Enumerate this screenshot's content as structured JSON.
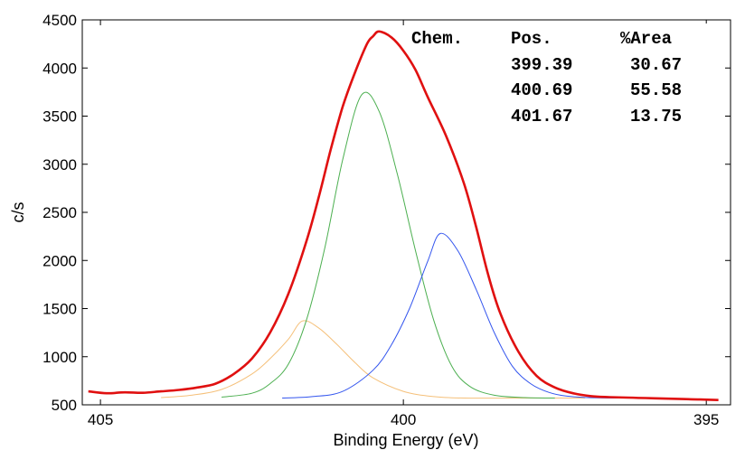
{
  "chart_data": {
    "type": "line",
    "xlabel": "Binding Energy (eV)",
    "ylabel": "c/s",
    "xlim": [
      405.3,
      394.6
    ],
    "x_reversed": true,
    "ylim": [
      500,
      4500
    ],
    "xticks": [
      405,
      400,
      395
    ],
    "yticks": [
      500,
      1000,
      1500,
      2000,
      2500,
      3000,
      3500,
      4000,
      4500
    ],
    "grid": false,
    "background_level": 570,
    "series": [
      {
        "color": "#e01010",
        "style": "envelope",
        "x": [
          405.2,
          404.9,
          404.6,
          404.3,
          404.0,
          403.7,
          403.4,
          403.1,
          402.8,
          402.5,
          402.2,
          401.9,
          401.6,
          401.4,
          401.2,
          401.0,
          400.8,
          400.6,
          400.5,
          400.4,
          400.2,
          400.0,
          399.8,
          399.6,
          399.3,
          399.0,
          398.8,
          398.6,
          398.4,
          398.1,
          397.8,
          397.5,
          397.2,
          396.9,
          396.6,
          396.3,
          396.0,
          395.7,
          395.4,
          395.1,
          394.8
        ],
        "y": [
          640,
          620,
          630,
          625,
          640,
          655,
          680,
          720,
          820,
          980,
          1250,
          1650,
          2200,
          2650,
          3150,
          3600,
          3950,
          4250,
          4330,
          4380,
          4320,
          4180,
          3980,
          3700,
          3300,
          2800,
          2350,
          1850,
          1450,
          1050,
          800,
          680,
          620,
          590,
          580,
          575,
          570,
          565,
          560,
          555,
          550
        ]
      },
      {
        "color": "#f5c07a",
        "style": "component",
        "peak_x": 401.67,
        "peak_y": 1370,
        "x": [
          404.0,
          403.5,
          403.0,
          402.5,
          402.2,
          401.9,
          401.67,
          401.4,
          401.1,
          400.8,
          400.5,
          400.0,
          399.5,
          399.0,
          398.0,
          397.0
        ],
        "y": [
          575,
          600,
          660,
          820,
          980,
          1180,
          1370,
          1300,
          1130,
          940,
          780,
          640,
          585,
          570,
          570,
          570
        ]
      },
      {
        "color": "#4caf50",
        "style": "component",
        "peak_x": 400.69,
        "peak_y": 3720,
        "x": [
          403.0,
          402.5,
          402.2,
          401.9,
          401.6,
          401.3,
          401.0,
          400.69,
          400.4,
          400.1,
          399.8,
          399.5,
          399.2,
          398.9,
          398.5,
          398.0,
          397.5
        ],
        "y": [
          580,
          620,
          720,
          920,
          1380,
          2120,
          3050,
          3720,
          3550,
          2900,
          2100,
          1380,
          900,
          690,
          600,
          575,
          570
        ]
      },
      {
        "color": "#3355ee",
        "style": "component",
        "peak_x": 399.39,
        "peak_y": 2280,
        "x": [
          402.0,
          401.5,
          401.0,
          400.5,
          400.2,
          399.9,
          399.6,
          399.39,
          399.1,
          398.8,
          398.5,
          398.2,
          397.9,
          397.6,
          397.3,
          396.8,
          396.0
        ],
        "y": [
          570,
          585,
          640,
          860,
          1120,
          1500,
          1990,
          2280,
          2100,
          1700,
          1250,
          900,
          720,
          630,
          590,
          572,
          570
        ]
      }
    ],
    "table": {
      "headers": [
        "Chem.",
        "Pos.",
        "%Area"
      ],
      "rows": [
        {
          "pos": "399.39",
          "area": "30.67"
        },
        {
          "pos": "400.69",
          "area": "55.58"
        },
        {
          "pos": "401.67",
          "area": "13.75"
        }
      ]
    }
  }
}
